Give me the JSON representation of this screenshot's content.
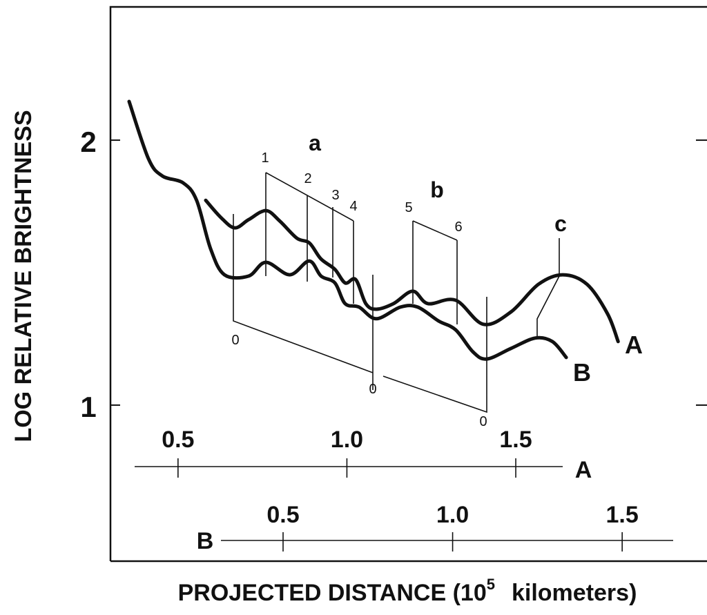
{
  "chart_data": {
    "type": "line",
    "ylabel": "LOG RELATIVE BRIGHTNESS",
    "xlabel": "PROJECTED DISTANCE (10",
    "xlabel_exponent": "5",
    "xlabel_unit": "kilometers)",
    "ylim": [
      0.411,
      2.503
    ],
    "yticks": [
      1,
      2
    ],
    "x_axes": [
      {
        "name": "A",
        "xlim": [
          0.3,
          2.058
        ],
        "xticks": [
          0.5,
          {
            "value": 1,
            "label": "1.0"
          },
          1.5
        ]
      },
      {
        "name": "B",
        "xlim": [
          -0.009,
          1.742
        ],
        "xticks": [
          0.5,
          {
            "value": 1,
            "label": "1.0"
          },
          1.5
        ]
      }
    ],
    "series": [
      {
        "name": "A",
        "color": "#111111",
        "x": [
          0.582,
          0.627,
          0.668,
          0.709,
          0.76,
          0.801,
          0.852,
          0.889,
          0.923,
          0.964,
          0.995,
          1.026,
          1.056,
          1.087,
          1.138,
          1.195,
          1.24,
          1.322,
          1.404,
          1.486,
          1.567,
          1.639,
          1.711,
          1.772,
          1.803
        ],
        "values": [
          1.773,
          1.708,
          1.669,
          1.7,
          1.734,
          1.695,
          1.63,
          1.612,
          1.552,
          1.513,
          1.461,
          1.474,
          1.383,
          1.362,
          1.383,
          1.43,
          1.383,
          1.396,
          1.305,
          1.352,
          1.456,
          1.492,
          1.456,
          1.344,
          1.24
        ]
      },
      {
        "name": "B",
        "color": "#111111",
        "x": [
          0.046,
          0.103,
          0.144,
          0.205,
          0.245,
          0.286,
          0.327,
          0.398,
          0.449,
          0.52,
          0.577,
          0.612,
          0.653,
          0.683,
          0.724,
          0.775,
          0.846,
          0.897,
          0.958,
          1.009,
          1.06,
          1.101,
          1.172,
          1.243,
          1.294,
          1.335
        ],
        "values": [
          2.146,
          1.93,
          1.865,
          1.839,
          1.773,
          1.591,
          1.492,
          1.487,
          1.539,
          1.492,
          1.544,
          1.487,
          1.461,
          1.383,
          1.37,
          1.326,
          1.37,
          1.37,
          1.318,
          1.284,
          1.201,
          1.174,
          1.214,
          1.253,
          1.24,
          1.18
        ]
      }
    ],
    "annotations": [
      "a",
      "b",
      "c",
      "1",
      "2",
      "3",
      "4",
      "5",
      "6",
      "0",
      "0",
      "0"
    ]
  }
}
